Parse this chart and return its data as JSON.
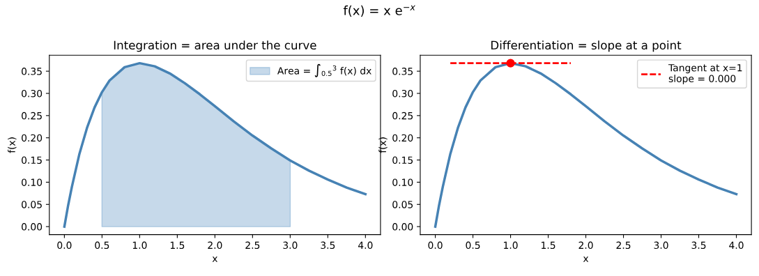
{
  "chart_data": [
    {
      "type": "line",
      "title": "Integration = area under the curve",
      "xlabel": "x",
      "ylabel": "f(x)",
      "x": [
        0,
        0.05,
        0.1,
        0.2,
        0.3,
        0.4,
        0.5,
        0.6,
        0.8,
        1.0,
        1.2,
        1.4,
        1.6,
        1.8,
        2.0,
        2.25,
        2.5,
        2.75,
        3.0,
        3.25,
        3.5,
        3.75,
        4.0
      ],
      "series": [
        {
          "color": "#4682b4",
          "values": [
            0,
            0.048,
            0.09,
            0.164,
            0.222,
            0.268,
            0.303,
            0.329,
            0.359,
            0.368,
            0.361,
            0.345,
            0.323,
            0.298,
            0.271,
            0.237,
            0.205,
            0.176,
            0.149,
            0.126,
            0.106,
            0.088,
            0.073
          ]
        },
        {
          "type": "area",
          "name": "Area = ∫$_{0.5}$$^{3}$ f(x) dx",
          "color": "#c6d9ea",
          "x": [
            0.5,
            0.6,
            0.8,
            1.0,
            1.2,
            1.4,
            1.6,
            1.8,
            2.0,
            2.25,
            2.5,
            2.75,
            3.0
          ],
          "values": [
            0.303,
            0.329,
            0.359,
            0.368,
            0.361,
            0.345,
            0.323,
            0.298,
            0.271,
            0.237,
            0.205,
            0.176,
            0.149
          ]
        }
      ],
      "xlim": [
        -0.2,
        4.2
      ],
      "ylim": [
        -0.018,
        0.386
      ],
      "xticks": [
        {
          "value": 0,
          "label": "0.0"
        },
        {
          "value": 0.5,
          "label": "0.5"
        },
        {
          "value": 1,
          "label": "1.0"
        },
        {
          "value": 1.5,
          "label": "1.5"
        },
        {
          "value": 2,
          "label": "2.0"
        },
        {
          "value": 2.5,
          "label": "2.5"
        },
        {
          "value": 3,
          "label": "3.0"
        },
        {
          "value": 3.5,
          "label": "3.5"
        },
        {
          "value": 4,
          "label": "4.0"
        }
      ],
      "yticks": [
        {
          "value": 0,
          "label": "0.00"
        },
        {
          "value": 0.05,
          "label": "0.05"
        },
        {
          "value": 0.1,
          "label": "0.10"
        },
        {
          "value": 0.15,
          "label": "0.15"
        },
        {
          "value": 0.2,
          "label": "0.20"
        },
        {
          "value": 0.25,
          "label": "0.25"
        },
        {
          "value": 0.3,
          "label": "0.30"
        },
        {
          "value": 0.35,
          "label": "0.35"
        }
      ],
      "legend": "top right",
      "annotations": [
        "f(x) = x e$^{−x}$"
      ]
    },
    {
      "type": "line",
      "title": "Differentiation = slope at a point",
      "xlabel": "x",
      "ylabel": "f(x)",
      "x": [
        0,
        0.05,
        0.1,
        0.2,
        0.3,
        0.4,
        0.5,
        0.6,
        0.8,
        1.0,
        1.2,
        1.4,
        1.6,
        1.8,
        2.0,
        2.25,
        2.5,
        2.75,
        3.0,
        3.25,
        3.5,
        3.75,
        4.0
      ],
      "series": [
        {
          "color": "#4682b4",
          "values": [
            0,
            0.048,
            0.09,
            0.164,
            0.222,
            0.268,
            0.303,
            0.329,
            0.359,
            0.368,
            0.361,
            0.345,
            0.323,
            0.298,
            0.271,
            0.237,
            0.205,
            0.176,
            0.149,
            0.126,
            0.106,
            0.088,
            0.073
          ]
        },
        {
          "type": "line",
          "name": "Tangent at x=1\nslope = 0.000",
          "color": "#ff0000",
          "line_style": "dashed",
          "x": [
            0.2,
            1.8
          ],
          "values": [
            0.368,
            0.368
          ]
        },
        {
          "type": "scatter",
          "color": "#ff0000",
          "marker": "circle",
          "x": [
            1.0
          ],
          "values": [
            0.368
          ]
        }
      ],
      "xlim": [
        -0.2,
        4.2
      ],
      "ylim": [
        -0.018,
        0.386
      ],
      "xticks": [
        {
          "value": 0,
          "label": "0.0"
        },
        {
          "value": 0.5,
          "label": "0.5"
        },
        {
          "value": 1,
          "label": "1.0"
        },
        {
          "value": 1.5,
          "label": "1.5"
        },
        {
          "value": 2,
          "label": "2.0"
        },
        {
          "value": 2.5,
          "label": "2.5"
        },
        {
          "value": 3,
          "label": "3.0"
        },
        {
          "value": 3.5,
          "label": "3.5"
        },
        {
          "value": 4,
          "label": "4.0"
        }
      ],
      "yticks": [
        {
          "value": 0,
          "label": "0.00"
        },
        {
          "value": 0.05,
          "label": "0.05"
        },
        {
          "value": 0.1,
          "label": "0.10"
        },
        {
          "value": 0.15,
          "label": "0.15"
        },
        {
          "value": 0.2,
          "label": "0.20"
        },
        {
          "value": 0.25,
          "label": "0.25"
        },
        {
          "value": 0.3,
          "label": "0.30"
        },
        {
          "value": 0.35,
          "label": "0.35"
        }
      ],
      "legend": "top right"
    }
  ]
}
